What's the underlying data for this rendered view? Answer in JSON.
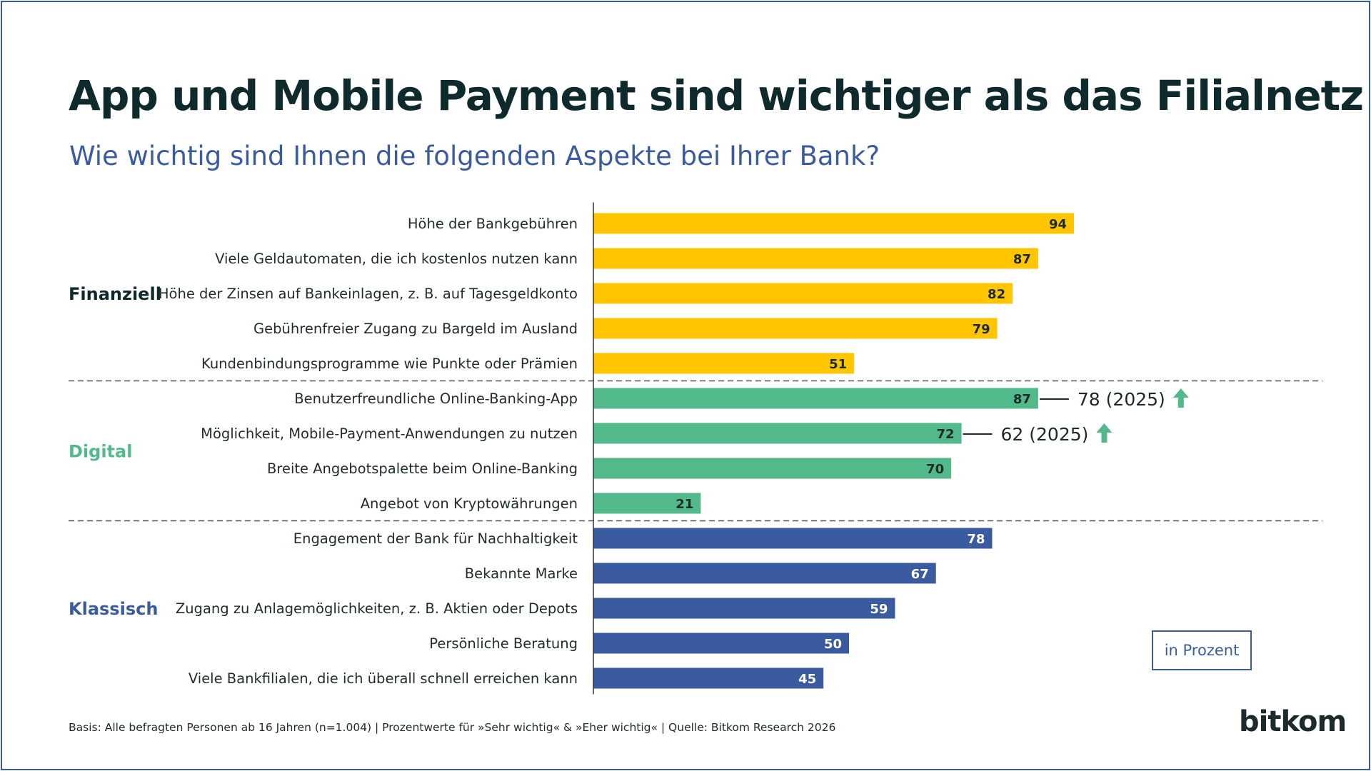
{
  "title": "App und Mobile Payment sind wichtiger als das Filialnetz",
  "subtitle": "Wie wichtig sind Ihnen die folgenden Aspekte bei Ihrer Bank?",
  "unit_label": "in Prozent",
  "footnote": "Basis: Alle befragten Personen ab 16 Jahren (n=1.004) | Prozentwerte für »Sehr wichtig« & »Eher wichtig« | Quelle: Bitkom Research 2026",
  "brand": "bitkom",
  "colors": {
    "finanziell": "#ffc600",
    "digital": "#52b98a",
    "klassisch": "#3a5ba0",
    "text_dark": "#0f2a2c",
    "arrow": "#52b98a"
  },
  "chart_data": {
    "type": "bar",
    "orientation": "horizontal",
    "xlim": [
      0,
      100
    ],
    "groups": [
      {
        "name": "Finanziell",
        "color": "#ffc600",
        "items": [
          {
            "label": "Höhe der Bankgebühren",
            "value": 94
          },
          {
            "label": "Viele Geldautomaten, die ich kostenlos nutzen kann",
            "value": 87
          },
          {
            "label": "Höhe der Zinsen auf Bankeinlagen, z. B. auf Tagesgeldkonto",
            "value": 82
          },
          {
            "label": "Gebührenfreier Zugang zu Bargeld im Ausland",
            "value": 79
          },
          {
            "label": "Kundenbindungsprogramme wie Punkte oder Prämien",
            "value": 51
          }
        ]
      },
      {
        "name": "Digital",
        "color": "#52b98a",
        "items": [
          {
            "label": "Benutzerfreundliche Online-Banking-App",
            "value": 87,
            "annotation": "78 (2025)"
          },
          {
            "label": "Möglichkeit, Mobile-Payment-Anwendungen zu nutzen",
            "value": 72,
            "annotation": "62 (2025)"
          },
          {
            "label": "Breite Angebotspalette beim Online-Banking",
            "value": 70
          },
          {
            "label": "Angebot von Kryptowährungen",
            "value": 21
          }
        ]
      },
      {
        "name": "Klassisch",
        "color": "#3a5ba0",
        "items": [
          {
            "label": "Engagement der Bank für Nachhaltigkeit",
            "value": 78
          },
          {
            "label": "Bekannte Marke",
            "value": 67
          },
          {
            "label": "Zugang zu Anlagemöglichkeiten, z. B. Aktien oder Depots",
            "value": 59
          },
          {
            "label": "Persönliche Beratung",
            "value": 50
          },
          {
            "label": "Viele Bankfilialen, die ich überall schnell erreichen kann",
            "value": 45
          }
        ]
      }
    ]
  }
}
